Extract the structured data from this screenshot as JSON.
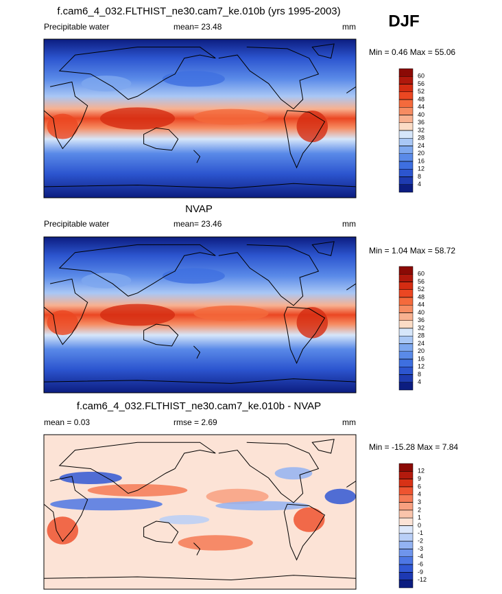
{
  "season": "DJF",
  "panels": [
    {
      "title": "f.cam6_4_032.FLTHIST_ne30.cam7_ke.010b (yrs 1995-2003)",
      "left_label": "Precipitable water",
      "center_label": "mean=  23.48",
      "right_label": "mm",
      "min_max": "Min =  0.46 Max =  55.06",
      "colorbar": {
        "levels": [
          60,
          56,
          52,
          48,
          44,
          40,
          36,
          32,
          28,
          24,
          20,
          16,
          12,
          8,
          4
        ],
        "colors": [
          "#8b0a05",
          "#b0180c",
          "#d42c12",
          "#eb4722",
          "#f46a3c",
          "#f68c62",
          "#f8b190",
          "#fbdcc6",
          "#d6e6fa",
          "#a9c7f5",
          "#7ea8ef",
          "#5a8ae8",
          "#3e6fe0",
          "#2c55cf",
          "#1e3bb0",
          "#0c1d80"
        ]
      }
    },
    {
      "title": "NVAP",
      "left_label": "Precipitable water",
      "center_label": "mean=  23.46",
      "right_label": "mm",
      "min_max": "Min =  1.04 Max =  58.72",
      "colorbar": {
        "levels": [
          60,
          56,
          52,
          48,
          44,
          40,
          36,
          32,
          28,
          24,
          20,
          16,
          12,
          8,
          4
        ],
        "colors": [
          "#8b0a05",
          "#b0180c",
          "#d42c12",
          "#eb4722",
          "#f46a3c",
          "#f68c62",
          "#f8b190",
          "#fbdcc6",
          "#d6e6fa",
          "#a9c7f5",
          "#7ea8ef",
          "#5a8ae8",
          "#3e6fe0",
          "#2c55cf",
          "#1e3bb0",
          "#0c1d80"
        ]
      }
    },
    {
      "title": "f.cam6_4_032.FLTHIST_ne30.cam7_ke.010b - NVAP",
      "left_label": "mean =  0.03",
      "center_label": "rmse =  2.69",
      "right_label": "mm",
      "min_max": "Min = -15.28 Max =   7.84",
      "colorbar": {
        "levels": [
          12,
          9,
          6,
          4,
          3,
          2,
          1,
          0,
          -1,
          -2,
          -3,
          -4,
          -6,
          -9,
          -12
        ],
        "colors": [
          "#8b0a05",
          "#b31a0d",
          "#d83216",
          "#ee5430",
          "#f57a55",
          "#f8a080",
          "#fac4ab",
          "#fce3d6",
          "#dde8fb",
          "#b9cff7",
          "#93b3f2",
          "#6f95ec",
          "#4d77e4",
          "#3158d4",
          "#1d39b3",
          "#0c1d80"
        ]
      }
    }
  ]
}
